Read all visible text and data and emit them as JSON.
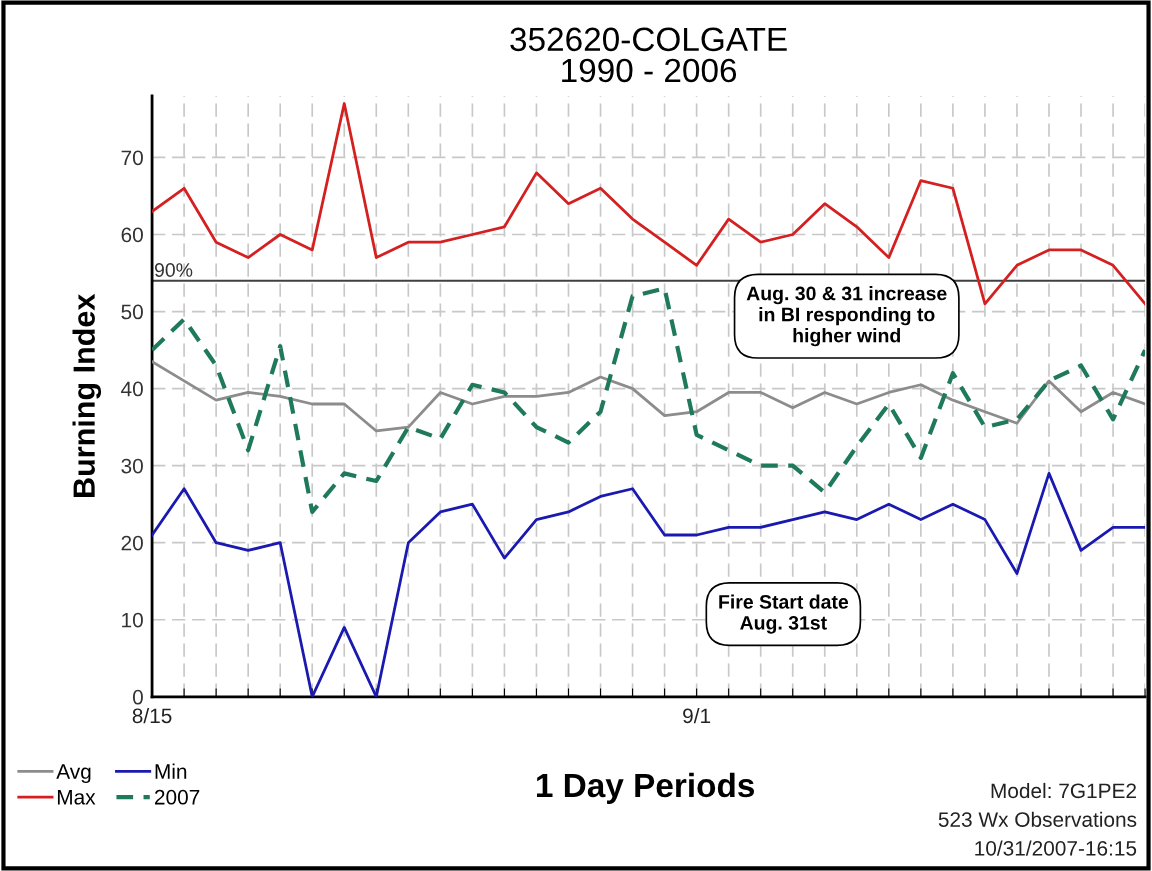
{
  "chart_data": {
    "type": "line",
    "title": "352620-COLGATE\n1990 - 2006",
    "xlabel": "1 Day Periods",
    "ylabel": "Burning Index",
    "categories": [
      "8/15",
      null,
      null,
      null,
      null,
      null,
      null,
      null,
      null,
      null,
      null,
      null,
      null,
      null,
      null,
      null,
      null,
      "9/1",
      null,
      null,
      null,
      null,
      null,
      null,
      null,
      null,
      null,
      null,
      null,
      null,
      null,
      null
    ],
    "series": [
      {
        "name": "Avg",
        "color": "#8c8c8c",
        "line_style": "solid",
        "values": [
          43.5,
          41,
          38.5,
          39.5,
          39,
          38,
          38,
          34.5,
          35,
          39.5,
          38,
          39,
          39,
          39.5,
          41.5,
          40,
          36.5,
          37,
          39.5,
          39.5,
          37.5,
          39.5,
          38,
          39.5,
          40.5,
          38.5,
          37,
          35.5,
          41,
          37,
          39.5,
          38
        ]
      },
      {
        "name": "Max",
        "color": "#d42020",
        "line_style": "solid",
        "values": [
          63,
          66,
          59,
          57,
          60,
          58,
          77,
          57,
          59,
          59,
          60,
          61,
          68,
          64,
          66,
          62,
          59,
          56,
          62,
          59,
          60,
          64,
          61,
          57,
          67,
          66,
          51,
          56,
          58,
          58,
          56,
          51
        ]
      },
      {
        "name": "Min",
        "color": "#1a1ab0",
        "line_style": "solid",
        "values": [
          21,
          27,
          20,
          19,
          20,
          0,
          9,
          0,
          20,
          24,
          25,
          18,
          23,
          24,
          26,
          27,
          21,
          21,
          22,
          22,
          23,
          24,
          23,
          25,
          23,
          25,
          23,
          16,
          29,
          19,
          22,
          22
        ]
      },
      {
        "name": "2007",
        "color": "#1e7a5a",
        "line_style": "dashed",
        "values": [
          45,
          49,
          43,
          32,
          45.5,
          24,
          29,
          28,
          35,
          33.5,
          40.5,
          39.5,
          35,
          33,
          37,
          52,
          53,
          34,
          32,
          30,
          30,
          26.5,
          32.5,
          38,
          31,
          42,
          35,
          36,
          41,
          43,
          36,
          45
        ]
      }
    ],
    "ylim": [
      0,
      78
    ],
    "yticks": [
      0,
      10,
      20,
      30,
      40,
      50,
      60,
      70
    ],
    "ref_lines": [
      {
        "axis": "y",
        "value": 54,
        "color": "#404040",
        "line_style": "solid"
      }
    ],
    "annotations": [
      {
        "text": "90%",
        "y": 54
      },
      "Aug. 30 & 31 increase\nin BI responding to\nhigher wind",
      "Fire Start date\nAug. 31st",
      "Model: 7G1PE2",
      "523 Wx Observations",
      "10/31/2007-16:15"
    ],
    "grid": true,
    "legend": "bottom left",
    "marker": "none"
  }
}
